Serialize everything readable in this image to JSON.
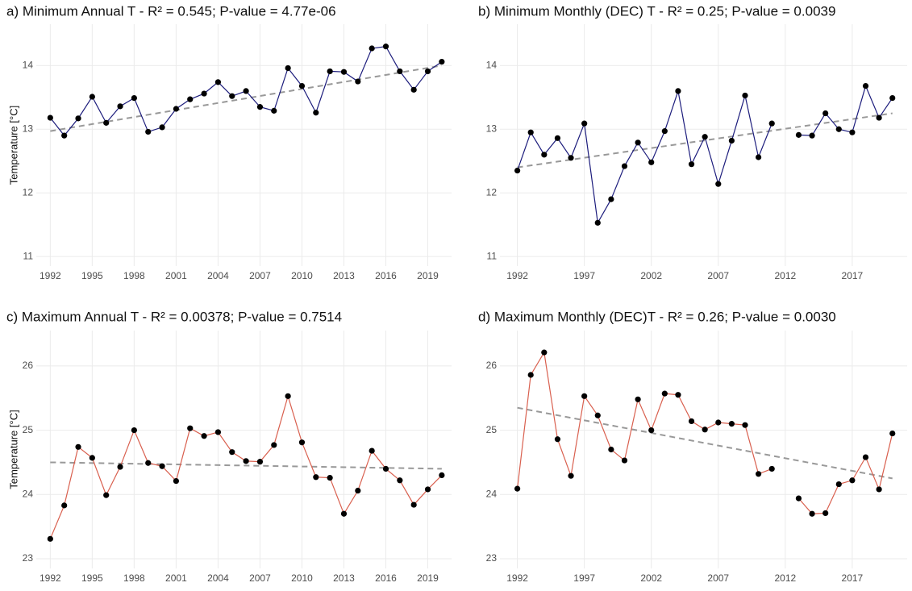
{
  "chart_data": [
    {
      "type": "line",
      "title": "a) Minimum Annual T - R² = 0.545; P-value = 4.77e-06",
      "ylabel": "Temperature [°C]",
      "color": "#1c1c7c",
      "point_color": "#000000",
      "trend_color": "#999999",
      "x": [
        1992,
        1993,
        1994,
        1995,
        1996,
        1997,
        1998,
        1999,
        2000,
        2001,
        2002,
        2003,
        2004,
        2005,
        2006,
        2007,
        2008,
        2009,
        2010,
        2011,
        2012,
        2013,
        2014,
        2015,
        2016,
        2017,
        2018,
        2019,
        2020
      ],
      "values": [
        13.18,
        12.9,
        13.17,
        13.51,
        13.1,
        13.36,
        13.49,
        12.96,
        13.03,
        13.32,
        13.47,
        13.56,
        13.74,
        13.52,
        13.6,
        13.35,
        13.29,
        13.96,
        13.68,
        13.26,
        13.91,
        13.9,
        13.75,
        14.27,
        14.3,
        13.91,
        13.62,
        13.91,
        14.06
      ],
      "trend_x": [
        1992,
        2020
      ],
      "trend": [
        12.97,
        14.0
      ],
      "xlim": [
        1991,
        2020.7
      ],
      "xticks": [
        1992,
        1995,
        1998,
        2001,
        2004,
        2007,
        2010,
        2013,
        2016,
        2019
      ],
      "ylim": [
        10.85,
        14.65
      ],
      "yticks": [
        11,
        12,
        13,
        14
      ],
      "grid": true
    },
    {
      "type": "line",
      "title": "b) Minimum Monthly (DEC) T - R² = 0.25; P-value = 0.0039",
      "color": "#1c1c7c",
      "point_color": "#000000",
      "trend_color": "#999999",
      "x": [
        1992,
        1993,
        1994,
        1995,
        1996,
        1997,
        1998,
        1999,
        2000,
        2001,
        2002,
        2003,
        2004,
        2005,
        2006,
        2007,
        2008,
        2009,
        2010,
        2011,
        2012,
        2013,
        2014,
        2015,
        2016,
        2017,
        2018,
        2019,
        2020
      ],
      "values": [
        12.35,
        12.95,
        12.6,
        12.86,
        12.55,
        13.09,
        11.53,
        11.9,
        12.42,
        12.79,
        12.48,
        12.97,
        13.6,
        12.45,
        12.88,
        12.14,
        12.82,
        13.53,
        12.56,
        13.09,
        null,
        12.91,
        12.9,
        13.25,
        13.0,
        12.95,
        13.68,
        13.18,
        13.49
      ],
      "trend_x": [
        1992,
        2020
      ],
      "trend": [
        12.4,
        13.25
      ],
      "xlim": [
        1990.7,
        2021.1
      ],
      "xticks": [
        1992,
        1997,
        2002,
        2007,
        2012,
        2017
      ],
      "ylim": [
        10.85,
        14.65
      ],
      "yticks": [
        11,
        12,
        13,
        14
      ],
      "grid": true
    },
    {
      "type": "line",
      "title": "c) Maximum Annual T - R² = 0.00378; P-value = 0.7514",
      "ylabel": "Temperature [°C]",
      "color": "#d9604f",
      "point_color": "#000000",
      "trend_color": "#999999",
      "x": [
        1992,
        1993,
        1994,
        1995,
        1996,
        1997,
        1998,
        1999,
        2000,
        2001,
        2002,
        2003,
        2004,
        2005,
        2006,
        2007,
        2008,
        2009,
        2010,
        2011,
        2012,
        2013,
        2014,
        2015,
        2016,
        2017,
        2018,
        2019,
        2020
      ],
      "values": [
        23.31,
        23.83,
        24.74,
        24.57,
        23.99,
        24.43,
        25.0,
        24.49,
        24.44,
        24.21,
        25.03,
        24.91,
        24.97,
        24.66,
        24.52,
        24.51,
        24.77,
        25.53,
        24.81,
        24.27,
        24.26,
        23.7,
        24.06,
        24.68,
        24.4,
        24.22,
        23.84,
        24.08,
        24.3
      ],
      "trend_x": [
        1992,
        2020
      ],
      "trend": [
        24.5,
        24.4
      ],
      "xlim": [
        1991,
        2020.7
      ],
      "xticks": [
        1992,
        1995,
        1998,
        2001,
        2004,
        2007,
        2010,
        2013,
        2016,
        2019
      ],
      "ylim": [
        22.85,
        26.55
      ],
      "yticks": [
        23,
        24,
        25,
        26
      ],
      "grid": true
    },
    {
      "type": "line",
      "title": "d) Maximum Monthly (DEC)T  - R² = 0.26; P-value =  0.0030",
      "color": "#d9604f",
      "point_color": "#000000",
      "trend_color": "#999999",
      "x": [
        1992,
        1993,
        1994,
        1995,
        1996,
        1997,
        1998,
        1999,
        2000,
        2001,
        2002,
        2003,
        2004,
        2005,
        2006,
        2007,
        2008,
        2009,
        2010,
        2011,
        2012,
        2013,
        2014,
        2015,
        2016,
        2017,
        2018,
        2019,
        2020
      ],
      "values": [
        24.09,
        25.86,
        26.21,
        24.86,
        24.29,
        25.53,
        25.23,
        24.7,
        24.53,
        25.48,
        25.0,
        25.57,
        25.55,
        25.14,
        25.01,
        25.12,
        25.1,
        25.08,
        24.32,
        24.4,
        null,
        23.94,
        23.7,
        23.71,
        24.16,
        24.22,
        24.58,
        24.08,
        24.95
      ],
      "trend_x": [
        1992,
        2020
      ],
      "trend": [
        25.35,
        24.25
      ],
      "xlim": [
        1990.7,
        2021.1
      ],
      "xticks": [
        1992,
        1997,
        2002,
        2007,
        2012,
        2017
      ],
      "ylim": [
        22.85,
        26.55
      ],
      "yticks": [
        23,
        24,
        25,
        26
      ],
      "grid": true
    }
  ]
}
